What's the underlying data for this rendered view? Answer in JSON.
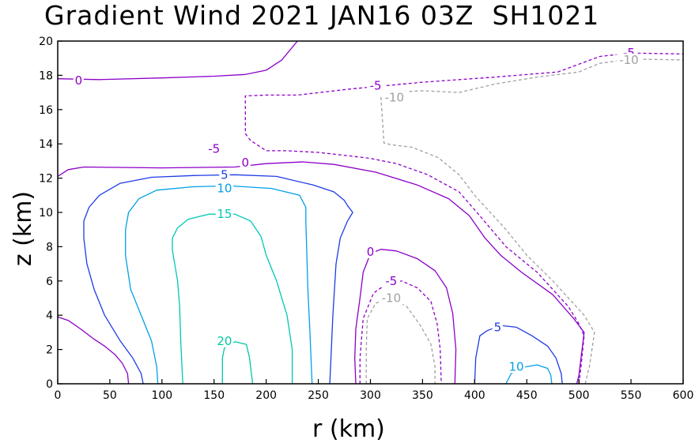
{
  "chart_data": {
    "type": "contour",
    "title": "Gradient Wind 2021 JAN16 03Z  SH1021",
    "xlabel": "r (km)",
    "ylabel": "z (km)",
    "xlim": [
      0,
      600
    ],
    "ylim": [
      0,
      20
    ],
    "xticks": [
      0,
      50,
      100,
      150,
      200,
      250,
      300,
      350,
      400,
      450,
      500,
      550,
      600
    ],
    "yticks": [
      0,
      2,
      4,
      6,
      8,
      10,
      12,
      14,
      16,
      18,
      20
    ],
    "grid": false,
    "colors": {
      "-10": "#a0a0a0",
      "-5": "#8c00c8",
      "0": "#8c00c8",
      "5": "#1e3ce6",
      "10": "#00a0e6",
      "15": "#00c8b4",
      "20": "#00c8a0"
    },
    "contours": [
      {
        "level": 0,
        "dashed": false,
        "points": [
          [
            0,
            17.8
          ],
          [
            40,
            17.75
          ],
          [
            100,
            17.85
          ],
          [
            150,
            17.95
          ],
          [
            180,
            18.05
          ],
          [
            200,
            18.3
          ],
          [
            215,
            18.9
          ],
          [
            230,
            20.0
          ]
        ]
      },
      {
        "level": 0,
        "dashed": false,
        "points": [
          [
            0,
            12.1
          ],
          [
            10,
            12.5
          ],
          [
            25,
            12.65
          ],
          [
            100,
            12.6
          ],
          [
            170,
            12.65
          ],
          [
            200,
            12.85
          ],
          [
            235,
            12.95
          ],
          [
            265,
            12.8
          ],
          [
            305,
            12.35
          ],
          [
            345,
            11.6
          ],
          [
            375,
            10.8
          ],
          [
            395,
            9.8
          ],
          [
            410,
            8.5
          ],
          [
            425,
            7.5
          ],
          [
            445,
            6.5
          ],
          [
            475,
            5.2
          ],
          [
            495,
            3.8
          ],
          [
            505,
            3.0
          ],
          [
            500,
            0.5
          ],
          [
            498,
            0.0
          ]
        ]
      },
      {
        "level": 0,
        "dashed": false,
        "points": [
          [
            0,
            3.9
          ],
          [
            10,
            3.7
          ],
          [
            22,
            3.2
          ],
          [
            35,
            2.6
          ],
          [
            45,
            2.2
          ],
          [
            55,
            1.7
          ],
          [
            62,
            1.2
          ],
          [
            67,
            0.6
          ],
          [
            68,
            0.0
          ]
        ]
      },
      {
        "level": 0,
        "dashed": false,
        "points": [
          [
            286,
            0.0
          ],
          [
            285,
            1.5
          ],
          [
            286,
            3.2
          ],
          [
            290,
            5.0
          ],
          [
            293,
            6.5
          ],
          [
            300,
            7.6
          ],
          [
            310,
            7.85
          ],
          [
            325,
            7.75
          ],
          [
            345,
            7.3
          ],
          [
            362,
            6.6
          ],
          [
            373,
            5.6
          ],
          [
            379,
            4.1
          ],
          [
            382,
            2.0
          ],
          [
            381,
            0.0
          ]
        ]
      },
      {
        "level": -5,
        "dashed": true,
        "points": [
          [
            500,
            0.0
          ],
          [
            502,
            1.0
          ],
          [
            505,
            2.8
          ],
          [
            500,
            3.5
          ],
          [
            490,
            4.5
          ],
          [
            460,
            6.5
          ],
          [
            430,
            8.0
          ],
          [
            405,
            9.8
          ],
          [
            385,
            11.2
          ],
          [
            355,
            12.2
          ],
          [
            325,
            12.85
          ],
          [
            300,
            13.15
          ],
          [
            280,
            13.3
          ],
          [
            250,
            13.5
          ],
          [
            220,
            13.6
          ],
          [
            200,
            13.6
          ],
          [
            185,
            14.2
          ],
          [
            180,
            14.6
          ],
          [
            180,
            16.8
          ],
          [
            200,
            16.85
          ],
          [
            230,
            16.85
          ],
          [
            280,
            17.2
          ],
          [
            350,
            17.6
          ],
          [
            420,
            17.9
          ],
          [
            480,
            18.2
          ],
          [
            520,
            19.1
          ],
          [
            550,
            19.3
          ],
          [
            600,
            19.25
          ]
        ]
      },
      {
        "level": -5,
        "dashed": true,
        "points": [
          [
            290,
            0.0
          ],
          [
            290,
            1.5
          ],
          [
            293,
            3.8
          ],
          [
            303,
            5.3
          ],
          [
            315,
            5.8
          ],
          [
            330,
            6.0
          ],
          [
            345,
            5.6
          ],
          [
            358,
            4.8
          ],
          [
            364,
            3.5
          ],
          [
            367,
            2.0
          ],
          [
            368,
            0.0
          ]
        ]
      },
      {
        "level": -10,
        "dashed": true,
        "points": [
          [
            506,
            0.0
          ],
          [
            510,
            1.0
          ],
          [
            515,
            3.0
          ],
          [
            505,
            4.0
          ],
          [
            475,
            6.0
          ],
          [
            450,
            7.5
          ],
          [
            430,
            9.0
          ],
          [
            400,
            11.0
          ],
          [
            385,
            12.2
          ],
          [
            365,
            13.2
          ],
          [
            340,
            13.8
          ],
          [
            320,
            13.95
          ],
          [
            313,
            14.05
          ],
          [
            310,
            16.8
          ],
          [
            320,
            17.0
          ],
          [
            350,
            17.1
          ],
          [
            385,
            17.0
          ],
          [
            420,
            17.5
          ],
          [
            460,
            17.9
          ],
          [
            500,
            18.2
          ],
          [
            520,
            18.7
          ],
          [
            550,
            18.95
          ],
          [
            600,
            18.9
          ]
        ]
      },
      {
        "level": -10,
        "dashed": true,
        "points": [
          [
            296,
            0.0
          ],
          [
            296,
            2.0
          ],
          [
            297,
            3.8
          ],
          [
            305,
            4.7
          ],
          [
            320,
            5.0
          ],
          [
            335,
            4.5
          ],
          [
            348,
            3.4
          ],
          [
            358,
            2.3
          ],
          [
            362,
            1.0
          ],
          [
            362,
            0.0
          ]
        ]
      },
      {
        "level": 5,
        "dashed": false,
        "points": [
          [
            82,
            0.0
          ],
          [
            80,
            0.6
          ],
          [
            72,
            1.5
          ],
          [
            60,
            2.5
          ],
          [
            45,
            4.0
          ],
          [
            35,
            5.5
          ],
          [
            28,
            7.0
          ],
          [
            25,
            8.5
          ],
          [
            25,
            9.5
          ],
          [
            30,
            10.3
          ],
          [
            40,
            11.0
          ],
          [
            60,
            11.7
          ],
          [
            90,
            12.05
          ],
          [
            130,
            12.15
          ],
          [
            170,
            12.2
          ],
          [
            210,
            12.1
          ],
          [
            245,
            11.6
          ],
          [
            265,
            11.2
          ],
          [
            275,
            10.7
          ],
          [
            278,
            10.4
          ],
          [
            283,
            10.0
          ],
          [
            278,
            9.5
          ],
          [
            271,
            8.5
          ],
          [
            267,
            7.0
          ],
          [
            264,
            4.0
          ],
          [
            261,
            0.0
          ]
        ]
      },
      {
        "level": 5,
        "dashed": false,
        "points": [
          [
            400,
            0.0
          ],
          [
            401,
            1.5
          ],
          [
            405,
            2.8
          ],
          [
            412,
            3.1
          ],
          [
            425,
            3.4
          ],
          [
            440,
            3.3
          ],
          [
            455,
            2.8
          ],
          [
            470,
            2.2
          ],
          [
            478,
            1.5
          ],
          [
            483,
            0.6
          ],
          [
            484,
            0.0
          ]
        ]
      },
      {
        "level": 10,
        "dashed": false,
        "points": [
          [
            96,
            0.0
          ],
          [
            95,
            1.0
          ],
          [
            90,
            2.5
          ],
          [
            80,
            4.0
          ],
          [
            70,
            5.5
          ],
          [
            65,
            7.5
          ],
          [
            65,
            9.0
          ],
          [
            68,
            10.0
          ],
          [
            78,
            10.8
          ],
          [
            95,
            11.3
          ],
          [
            130,
            11.5
          ],
          [
            165,
            11.55
          ],
          [
            205,
            11.4
          ],
          [
            232,
            11.0
          ],
          [
            238,
            10.3
          ],
          [
            238,
            9.5
          ],
          [
            240,
            5.5
          ],
          [
            242,
            3.0
          ],
          [
            244,
            0.0
          ]
        ]
      },
      {
        "level": 10,
        "dashed": false,
        "points": [
          [
            430,
            0.0
          ],
          [
            435,
            0.6
          ],
          [
            445,
            0.95
          ],
          [
            460,
            1.1
          ],
          [
            470,
            0.9
          ],
          [
            473,
            0.5
          ],
          [
            474,
            0.0
          ]
        ]
      },
      {
        "level": 15,
        "dashed": false,
        "points": [
          [
            120,
            0.0
          ],
          [
            118,
            2.5
          ],
          [
            117,
            4.5
          ],
          [
            115,
            6.0
          ],
          [
            110,
            7.8
          ],
          [
            110,
            8.5
          ],
          [
            115,
            9.1
          ],
          [
            125,
            9.6
          ],
          [
            145,
            9.9
          ],
          [
            170,
            9.9
          ],
          [
            185,
            9.5
          ],
          [
            195,
            8.6
          ],
          [
            200,
            7.5
          ],
          [
            210,
            6.0
          ],
          [
            220,
            4.0
          ],
          [
            225,
            2.0
          ],
          [
            225,
            0.0
          ]
        ]
      },
      {
        "level": 20,
        "dashed": false,
        "points": [
          [
            158,
            0.0
          ],
          [
            158,
            1.5
          ],
          [
            160,
            2.1
          ],
          [
            170,
            2.45
          ],
          [
            181,
            2.3
          ],
          [
            184,
            1.5
          ],
          [
            187,
            0.0
          ]
        ]
      }
    ],
    "annotations": [
      {
        "text": "0",
        "x": 20,
        "y": 17.7,
        "level": 0
      },
      {
        "text": "0",
        "x": 180,
        "y": 12.9,
        "level": 0
      },
      {
        "text": "0",
        "x": 300,
        "y": 7.7,
        "level": 0
      },
      {
        "text": "-5",
        "x": 548,
        "y": 19.3,
        "level": -5
      },
      {
        "text": "-5",
        "x": 305,
        "y": 17.4,
        "level": -5
      },
      {
        "text": "-5",
        "x": 150,
        "y": 13.7,
        "level": -5
      },
      {
        "text": "-5",
        "x": 320,
        "y": 6.0,
        "level": -5
      },
      {
        "text": "-10",
        "x": 548,
        "y": 18.9,
        "level": -10
      },
      {
        "text": "-10",
        "x": 323,
        "y": 16.7,
        "level": -10
      },
      {
        "text": "-10",
        "x": 320,
        "y": 5.0,
        "level": -10
      },
      {
        "text": "5",
        "x": 160,
        "y": 12.2,
        "level": 5
      },
      {
        "text": "5",
        "x": 422,
        "y": 3.3,
        "level": 5
      },
      {
        "text": "10",
        "x": 160,
        "y": 11.4,
        "level": 10
      },
      {
        "text": "10",
        "x": 440,
        "y": 1.0,
        "level": 10
      },
      {
        "text": "15",
        "x": 160,
        "y": 9.9,
        "level": 15
      },
      {
        "text": "20",
        "x": 160,
        "y": 2.5,
        "level": 20
      }
    ]
  }
}
